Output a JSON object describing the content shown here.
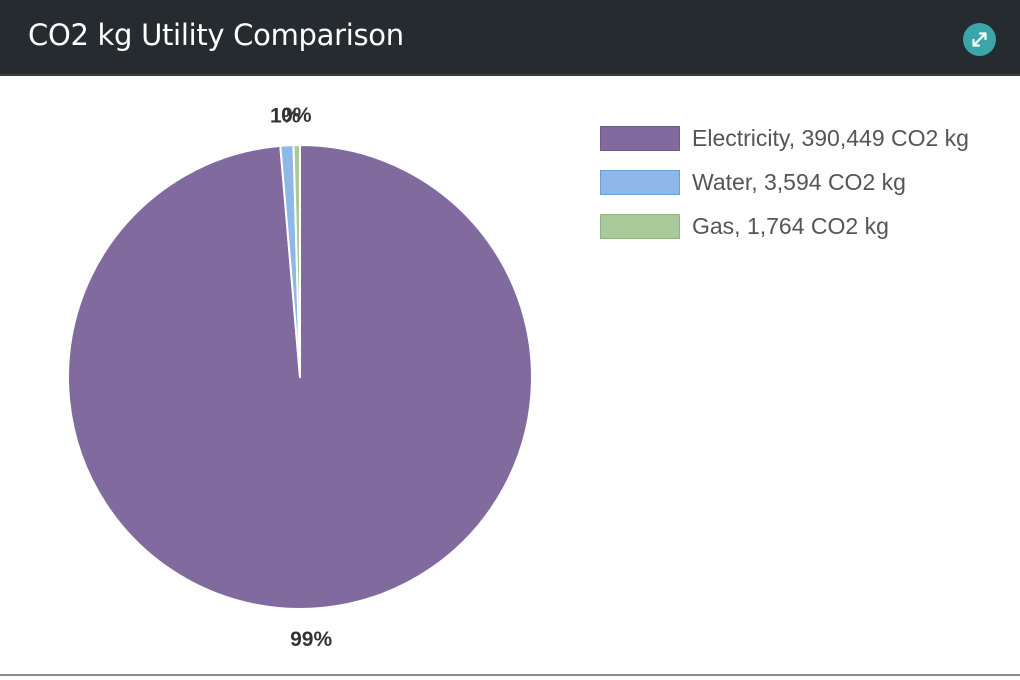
{
  "header": {
    "title": "CO2 kg Utility Comparison",
    "expand_icon": "expand-arrows-icon",
    "accent_color": "#3aa6a8"
  },
  "chart_data": {
    "type": "pie",
    "title": "CO2 kg Utility Comparison",
    "unit": "CO2 kg",
    "start_angle_deg": 0,
    "direction": "clockwise",
    "slices": [
      {
        "name": "Electricity",
        "value": 390449,
        "value_text": "390,449",
        "pct_label": "99%",
        "color": "#816a9e"
      },
      {
        "name": "Water",
        "value": 3594,
        "value_text": "3,594",
        "pct_label": "1%",
        "color": "#8db8e8"
      },
      {
        "name": "Gas",
        "value": 1764,
        "value_text": "1,764",
        "pct_label": "0%",
        "color": "#a8c99a"
      }
    ],
    "legend_position": "right"
  },
  "legend": {
    "items": [
      {
        "label": "Electricity, 390,449 CO2 kg",
        "color": "#816a9e",
        "border": "#6d5a87"
      },
      {
        "label": "Water, 3,594 CO2 kg",
        "color": "#8db8e8",
        "border": "#6d9fd6"
      },
      {
        "label": "Gas, 1,764 CO2 kg",
        "color": "#a8c99a",
        "border": "#8db57d"
      }
    ]
  }
}
